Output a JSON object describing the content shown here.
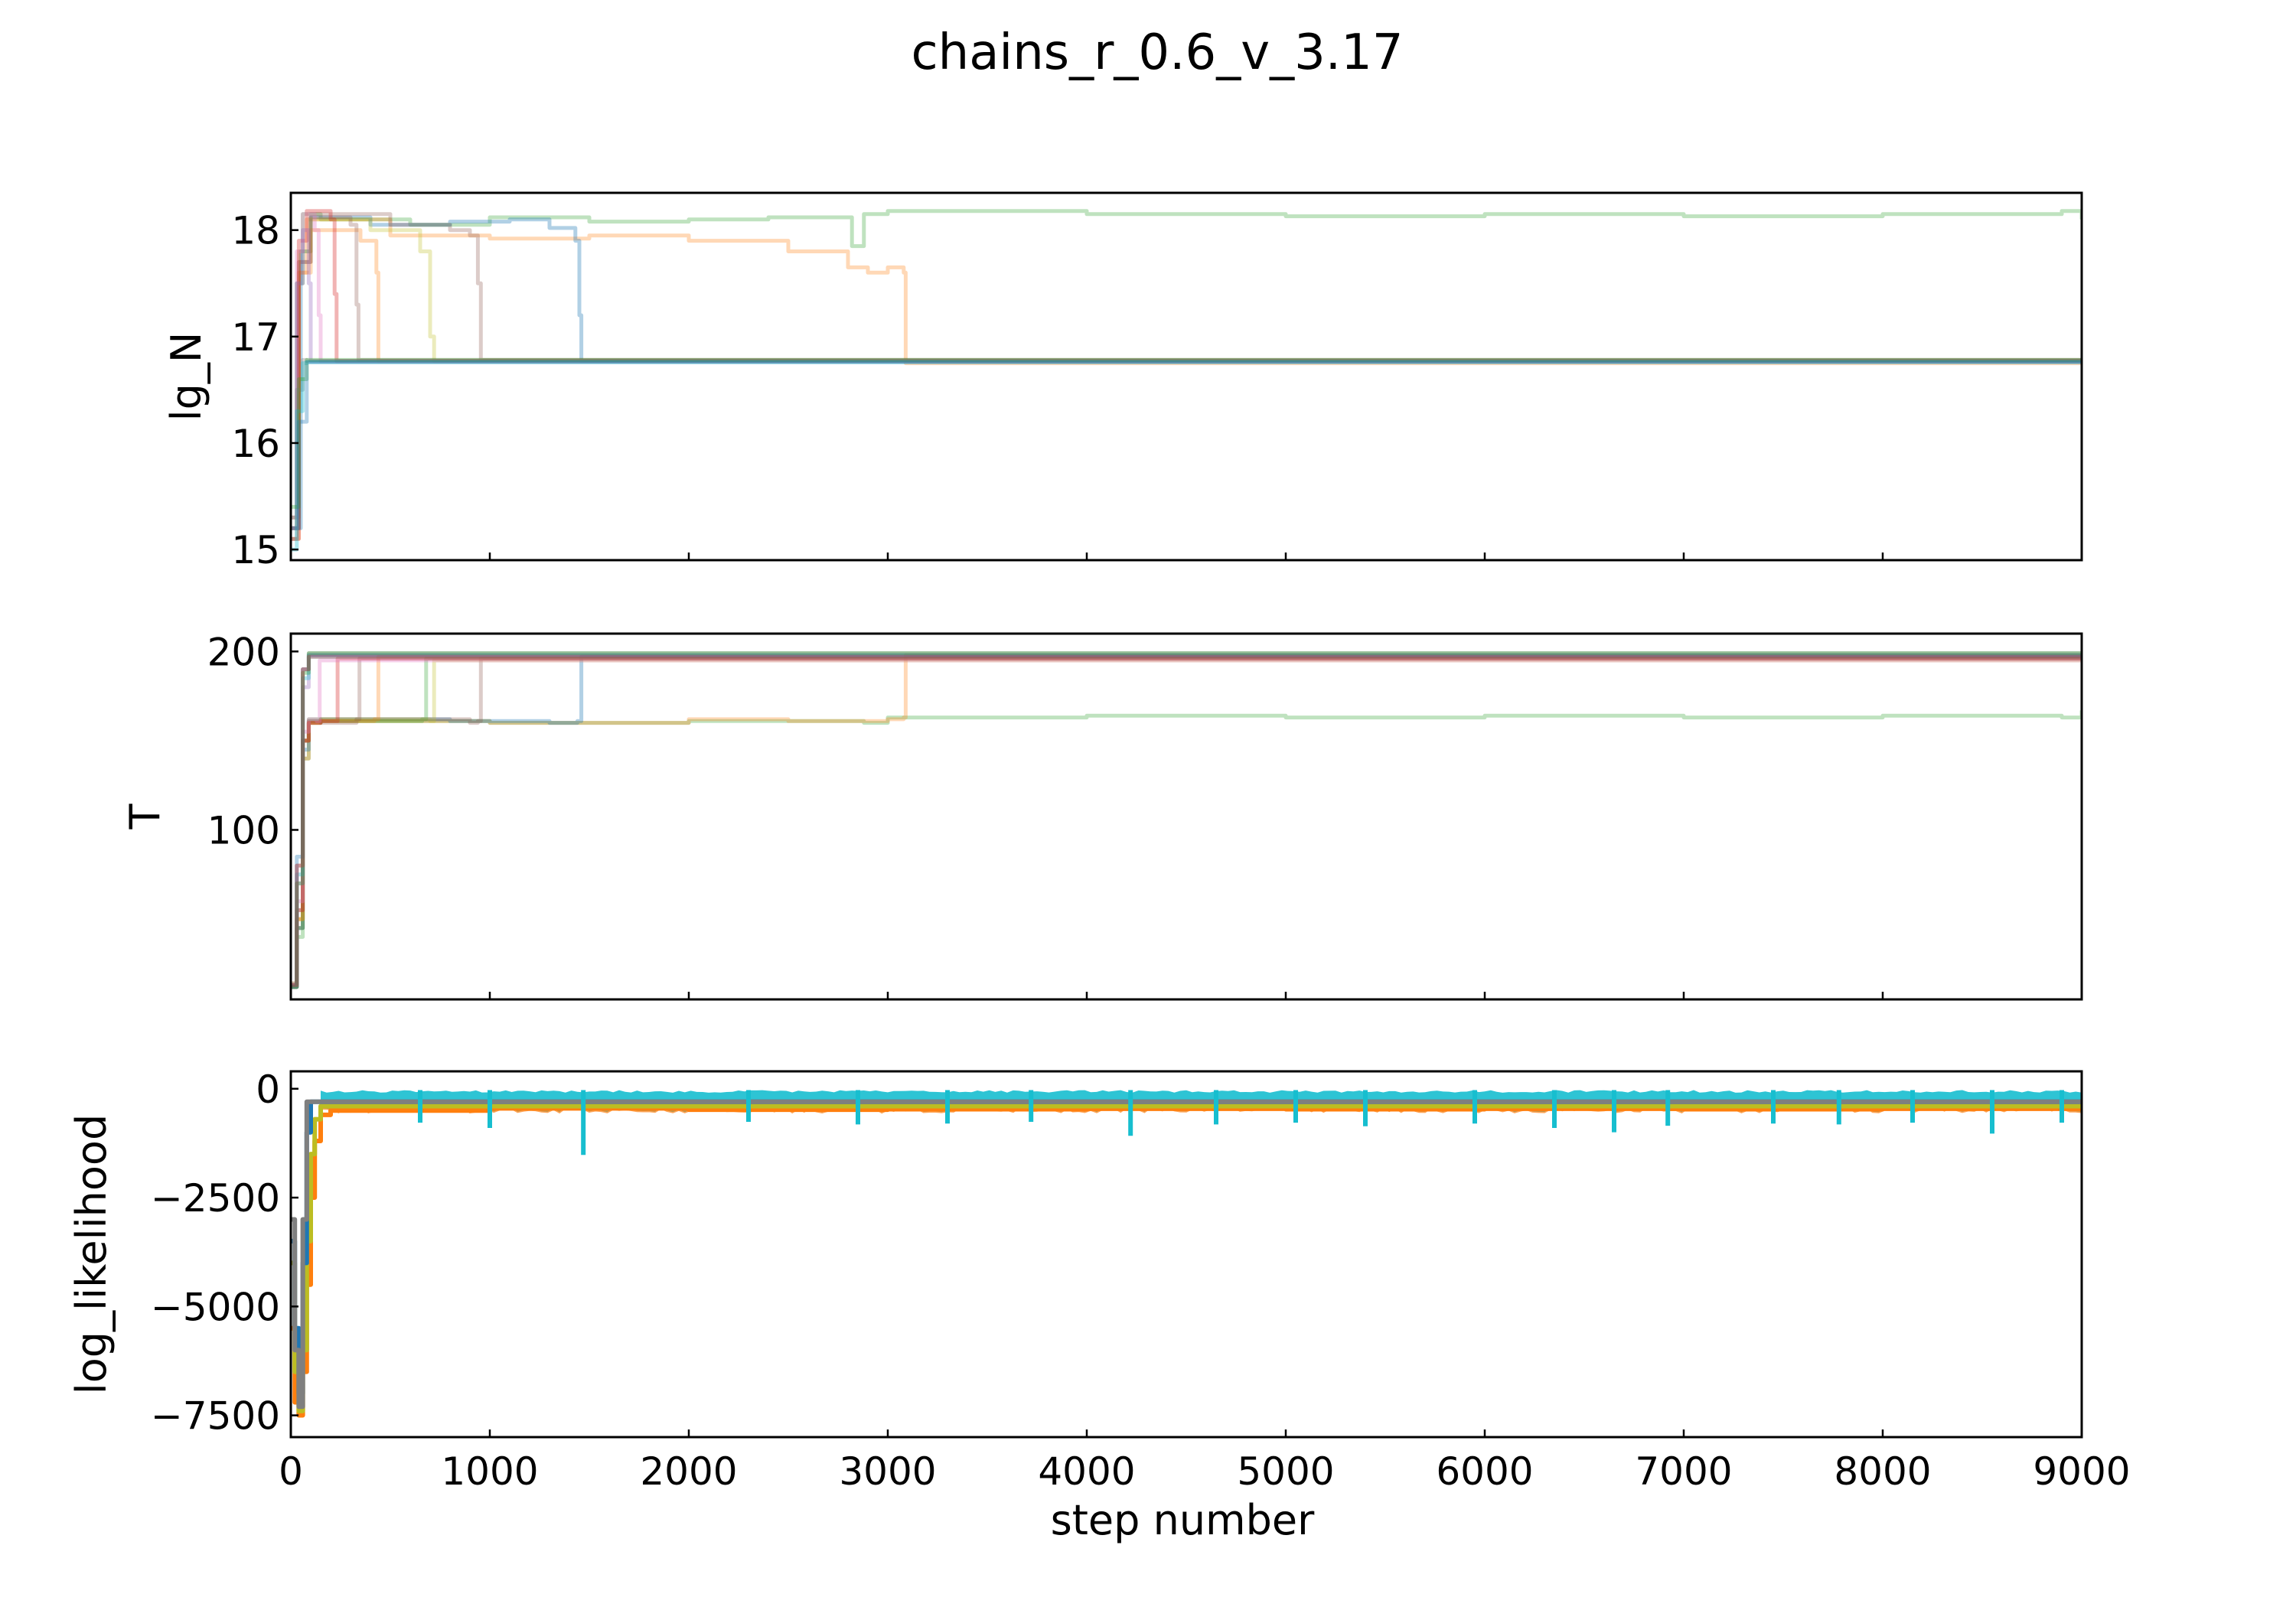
{
  "figure": {
    "title": "chains_r_0.6_v_3.17"
  },
  "colors": {
    "axes": "#000000",
    "background": "#ffffff",
    "walkers": [
      "#1f77b4",
      "#ff7f0e",
      "#2ca02c",
      "#d62728",
      "#9467bd",
      "#8c564b",
      "#e377c2",
      "#7f7f7f",
      "#bcbd22",
      "#17becf"
    ]
  },
  "chart_data": [
    {
      "type": "line",
      "panel": "top",
      "title": "",
      "xlabel": "",
      "ylabel": "lg_N",
      "xlim": [
        0,
        9000
      ],
      "ylim": [
        14.9,
        18.35
      ],
      "xticks": [
        0,
        1000,
        2000,
        3000,
        4000,
        5000,
        6000,
        7000,
        8000,
        9000
      ],
      "yticks": [
        15,
        16,
        17,
        18
      ],
      "ytick_labels": [
        "15",
        "16",
        "17",
        "18"
      ],
      "grid": false,
      "legend": "none",
      "series": [
        {
          "color": "#2ca02c",
          "opacity": 0.3,
          "x": [
            0,
            30,
            60,
            150,
            600,
            1000,
            1500,
            2000,
            2400,
            2820,
            2880,
            3000,
            4000,
            5000,
            6000,
            7000,
            8000,
            8900,
            9000
          ],
          "y": [
            15.2,
            17.5,
            18.15,
            18.1,
            18.05,
            18.12,
            18.08,
            18.1,
            18.12,
            17.85,
            18.15,
            18.18,
            18.15,
            18.13,
            18.15,
            18.13,
            18.15,
            18.18,
            18.1
          ]
        },
        {
          "color": "#ff7f0e",
          "opacity": 0.3,
          "x": [
            0,
            40,
            80,
            500,
            1000,
            1500,
            2000,
            2500,
            2800,
            2900,
            3000,
            3080,
            3090,
            9000
          ],
          "y": [
            15.1,
            17.6,
            18.1,
            17.95,
            17.92,
            17.95,
            17.9,
            17.8,
            17.65,
            17.6,
            17.65,
            17.6,
            16.75,
            16.77
          ]
        },
        {
          "color": "#1f77b4",
          "opacity": 0.35,
          "x": [
            0,
            50,
            100,
            400,
            800,
            1100,
            1300,
            1430,
            1450,
            1460,
            9000
          ],
          "y": [
            15.2,
            17.8,
            18.12,
            18.05,
            18.08,
            18.1,
            18.02,
            17.9,
            17.2,
            16.77,
            16.77
          ]
        },
        {
          "color": "#8c564b",
          "opacity": 0.3,
          "x": [
            0,
            40,
            100,
            500,
            800,
            900,
            940,
            955,
            9000
          ],
          "y": [
            15.3,
            17.7,
            18.15,
            18.05,
            18.0,
            17.95,
            17.5,
            16.78,
            16.77
          ]
        },
        {
          "color": "#bcbd22",
          "opacity": 0.3,
          "x": [
            0,
            40,
            100,
            400,
            650,
            700,
            720,
            9000
          ],
          "y": [
            15.3,
            17.8,
            18.1,
            18.0,
            17.8,
            17.0,
            16.77,
            16.77
          ]
        },
        {
          "color": "#ff7f0e",
          "opacity": 0.3,
          "x": [
            0,
            40,
            100,
            350,
            430,
            440,
            9000
          ],
          "y": [
            15.2,
            17.6,
            18.0,
            17.9,
            17.6,
            16.77,
            16.78
          ]
        },
        {
          "color": "#8c564b",
          "opacity": 0.3,
          "x": [
            0,
            40,
            100,
            300,
            330,
            340,
            9000
          ],
          "y": [
            15.2,
            17.7,
            18.12,
            18.05,
            17.3,
            16.78,
            16.77
          ]
        },
        {
          "color": "#d62728",
          "opacity": 0.35,
          "x": [
            0,
            40,
            80,
            200,
            220,
            230,
            9000
          ],
          "y": [
            15.1,
            17.9,
            18.18,
            18.1,
            17.4,
            16.77,
            16.77
          ]
        },
        {
          "color": "#e377c2",
          "opacity": 0.35,
          "x": [
            0,
            30,
            60,
            120,
            140,
            150,
            9000
          ],
          "y": [
            15.2,
            17.8,
            18.15,
            18.0,
            17.2,
            16.77,
            16.78
          ]
        },
        {
          "color": "#9467bd",
          "opacity": 0.35,
          "x": [
            0,
            30,
            60,
            90,
            100,
            9000
          ],
          "y": [
            15.3,
            17.5,
            18.0,
            17.5,
            16.77,
            16.76
          ]
        },
        {
          "color": "#7f7f7f",
          "opacity": 0.35,
          "x": [
            0,
            30,
            60,
            80,
            9000
          ],
          "y": [
            15.1,
            16.5,
            16.78,
            16.77,
            16.77
          ]
        },
        {
          "color": "#17becf",
          "opacity": 0.35,
          "x": [
            0,
            30,
            60,
            80,
            9000
          ],
          "y": [
            15.0,
            16.3,
            16.75,
            16.76,
            16.76
          ]
        },
        {
          "color": "#2ca02c",
          "opacity": 0.35,
          "x": [
            0,
            40,
            80,
            9000
          ],
          "y": [
            15.4,
            16.6,
            16.78,
            16.78
          ]
        },
        {
          "color": "#1f77b4",
          "opacity": 0.35,
          "x": [
            0,
            40,
            80,
            9000
          ],
          "y": [
            15.2,
            16.2,
            16.76,
            16.76
          ]
        }
      ]
    },
    {
      "type": "line",
      "panel": "middle",
      "title": "",
      "xlabel": "",
      "ylabel": "T",
      "xlim": [
        0,
        9000
      ],
      "ylim": [
        5,
        210
      ],
      "xticks": [
        0,
        1000,
        2000,
        3000,
        4000,
        5000,
        6000,
        7000,
        8000,
        9000
      ],
      "yticks": [
        100,
        200
      ],
      "ytick_labels": [
        "100",
        "200"
      ],
      "grid": false,
      "legend": "none",
      "series": [
        {
          "color": "#2ca02c",
          "opacity": 0.3,
          "x": [
            0,
            30,
            60,
            90,
            150,
            1000,
            2000,
            2880,
            3000,
            4000,
            5000,
            6000,
            7000,
            8000,
            8900,
            9000
          ],
          "y": [
            12,
            40,
            140,
            162,
            161,
            160,
            161,
            160,
            163,
            164,
            163,
            164,
            163,
            164,
            163,
            167
          ]
        },
        {
          "color": "#ff7f0e",
          "opacity": 0.3,
          "x": [
            0,
            30,
            60,
            90,
            150,
            1000,
            2000,
            2500,
            3000,
            3080,
            3090,
            9000
          ],
          "y": [
            14,
            50,
            140,
            160,
            161,
            160,
            162,
            161,
            162,
            163,
            198,
            197
          ]
        },
        {
          "color": "#1f77b4",
          "opacity": 0.35,
          "x": [
            0,
            30,
            60,
            90,
            150,
            800,
            1300,
            1440,
            1460,
            9000
          ],
          "y": [
            12,
            45,
            145,
            161,
            162,
            161,
            160,
            161,
            197,
            197
          ]
        },
        {
          "color": "#8c564b",
          "opacity": 0.3,
          "x": [
            0,
            30,
            60,
            90,
            150,
            900,
            940,
            955,
            9000
          ],
          "y": [
            13,
            45,
            150,
            160,
            162,
            160,
            161,
            196,
            197
          ]
        },
        {
          "color": "#2ca02c",
          "opacity": 0.3,
          "x": [
            0,
            30,
            60,
            90,
            150,
            600,
            660,
            680,
            9000
          ],
          "y": [
            12,
            45,
            150,
            160,
            161,
            161,
            162,
            196,
            197
          ]
        },
        {
          "color": "#bcbd22",
          "opacity": 0.3,
          "x": [
            0,
            30,
            60,
            90,
            150,
            700,
            720,
            9000
          ],
          "y": [
            13,
            50,
            150,
            161,
            162,
            161,
            195,
            197
          ]
        },
        {
          "color": "#ff7f0e",
          "opacity": 0.3,
          "x": [
            0,
            30,
            60,
            90,
            150,
            420,
            440,
            9000
          ],
          "y": [
            12,
            50,
            150,
            160,
            161,
            162,
            197,
            197
          ]
        },
        {
          "color": "#8c564b",
          "opacity": 0.3,
          "x": [
            0,
            30,
            60,
            90,
            150,
            330,
            345,
            9000
          ],
          "y": [
            12,
            55,
            150,
            161,
            160,
            162,
            196,
            197
          ]
        },
        {
          "color": "#d62728",
          "opacity": 0.35,
          "x": [
            0,
            30,
            60,
            90,
            150,
            220,
            235,
            9000
          ],
          "y": [
            12,
            55,
            150,
            160,
            161,
            161,
            196,
            197
          ]
        },
        {
          "color": "#e377c2",
          "opacity": 0.35,
          "x": [
            0,
            30,
            60,
            90,
            130,
            145,
            9000
          ],
          "y": [
            13,
            60,
            155,
            162,
            161,
            195,
            197
          ]
        },
        {
          "color": "#9467bd",
          "opacity": 0.35,
          "x": [
            0,
            30,
            60,
            90,
            9000
          ],
          "y": [
            12,
            70,
            180,
            198,
            198
          ]
        },
        {
          "color": "#7f7f7f",
          "opacity": 0.35,
          "x": [
            0,
            30,
            60,
            90,
            9000
          ],
          "y": [
            14,
            80,
            190,
            199,
            199
          ]
        },
        {
          "color": "#17becf",
          "opacity": 0.35,
          "x": [
            0,
            30,
            60,
            90,
            9000
          ],
          "y": [
            12,
            75,
            185,
            197,
            197
          ]
        },
        {
          "color": "#1f77b4",
          "opacity": 0.35,
          "x": [
            0,
            30,
            60,
            90,
            9000
          ],
          "y": [
            13,
            85,
            190,
            198,
            198
          ]
        },
        {
          "color": "#2ca02c",
          "opacity": 0.35,
          "x": [
            0,
            30,
            60,
            90,
            9000
          ],
          "y": [
            12,
            70,
            188,
            199,
            199
          ]
        },
        {
          "color": "#d62728",
          "opacity": 0.35,
          "x": [
            0,
            30,
            60,
            90,
            9000
          ],
          "y": [
            13,
            80,
            190,
            197,
            197
          ]
        }
      ]
    },
    {
      "type": "line",
      "panel": "bottom",
      "title": "",
      "xlabel": "step number",
      "ylabel": "log_likelihood",
      "xlim": [
        0,
        9000
      ],
      "ylim": [
        -8000,
        400
      ],
      "xticks": [
        0,
        1000,
        2000,
        3000,
        4000,
        5000,
        6000,
        7000,
        8000,
        9000
      ],
      "xtick_labels": [
        "0",
        "1000",
        "2000",
        "3000",
        "4000",
        "5000",
        "6000",
        "7000",
        "8000",
        "9000"
      ],
      "yticks": [
        0,
        -2500,
        -5000,
        -7500
      ],
      "ytick_labels": [
        "0",
        "−2500",
        "−5000",
        "−7500"
      ],
      "grid": false,
      "legend": "none",
      "series": [
        {
          "color": "#ff7f0e",
          "opacity": 1,
          "x": [
            0,
            20,
            40,
            60,
            80,
            100,
            120,
            150,
            200,
            1000,
            2000,
            3000,
            4000,
            5000,
            6000,
            7000,
            8000,
            9000
          ],
          "y": [
            -5500,
            -7200,
            -7500,
            -6500,
            -4500,
            -2500,
            -1200,
            -600,
            -500,
            -450,
            -480,
            -470,
            -460,
            -470,
            -460,
            -470,
            -460,
            -480
          ]
        },
        {
          "color": "#bcbd22",
          "opacity": 1,
          "x": [
            0,
            20,
            40,
            60,
            80,
            100,
            120,
            150,
            9000
          ],
          "y": [
            -4000,
            -6500,
            -7400,
            -6000,
            -3500,
            -1500,
            -700,
            -400,
            -420
          ]
        },
        {
          "color": "#1f77b4",
          "opacity": 1,
          "x": [
            0,
            20,
            40,
            60,
            80,
            100,
            9000
          ],
          "y": [
            -3500,
            -5500,
            -7000,
            -4000,
            -1000,
            -300,
            -300
          ]
        },
        {
          "color": "#7f7f7f",
          "opacity": 1,
          "x": [
            0,
            20,
            40,
            60,
            80,
            9000
          ],
          "y": [
            -3000,
            -6000,
            -7300,
            -3000,
            -300,
            -280
          ]
        }
      ],
      "band": {
        "color": "#17becf",
        "upper": -30,
        "lower": -420
      },
      "spikes": [
        {
          "x": 1470,
          "y": -1520
        },
        {
          "x": 4220,
          "y": -1080
        },
        {
          "x": 1000,
          "y": -900
        },
        {
          "x": 650,
          "y": -780
        },
        {
          "x": 2300,
          "y": -760
        },
        {
          "x": 2850,
          "y": -820
        },
        {
          "x": 3300,
          "y": -800
        },
        {
          "x": 3720,
          "y": -760
        },
        {
          "x": 4650,
          "y": -820
        },
        {
          "x": 5050,
          "y": -780
        },
        {
          "x": 5400,
          "y": -860
        },
        {
          "x": 5950,
          "y": -800
        },
        {
          "x": 6350,
          "y": -900
        },
        {
          "x": 6650,
          "y": -1000
        },
        {
          "x": 6920,
          "y": -850
        },
        {
          "x": 7450,
          "y": -800
        },
        {
          "x": 7780,
          "y": -820
        },
        {
          "x": 8150,
          "y": -780
        },
        {
          "x": 8550,
          "y": -1030
        },
        {
          "x": 8900,
          "y": -780
        }
      ]
    }
  ]
}
